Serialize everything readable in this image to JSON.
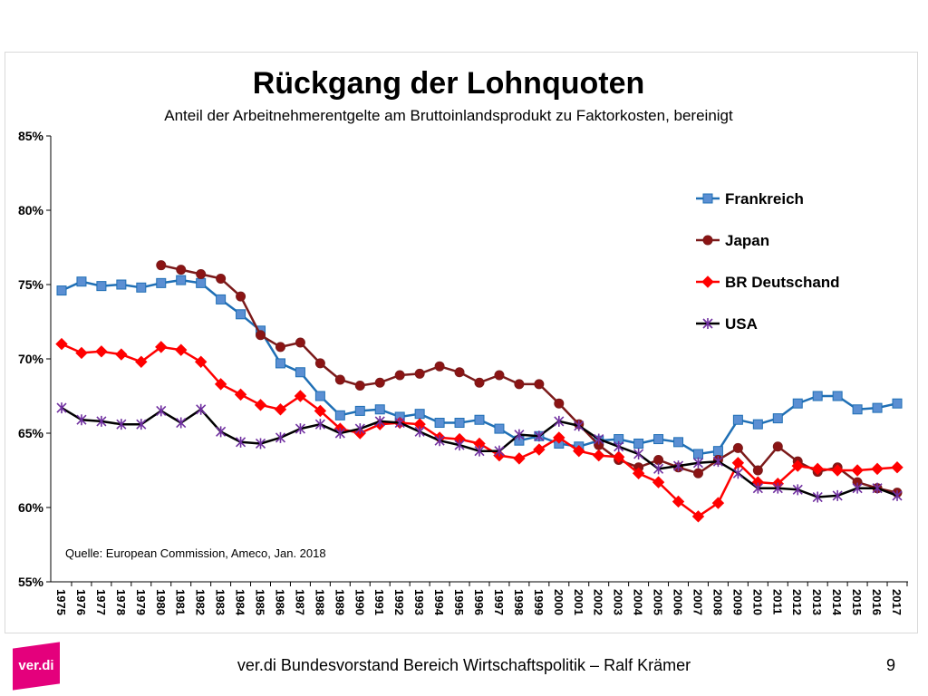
{
  "slide": {
    "footer": "ver.di Bundesvorstand Bereich Wirtschaftspolitik – Ralf Krämer",
    "page_number": "9",
    "logo_text": "ver.di"
  },
  "chart_data": {
    "type": "line",
    "title": "Rückgang der Lohnquoten",
    "subtitle": "Anteil der Arbeitnehmerentgelte am Bruttoinlandsprodukt zu Faktorkosten, bereinigt",
    "source": "Quelle: European Commission, Ameco, Jan. 2018",
    "xlabel": "",
    "ylabel": "",
    "ylim": [
      55,
      85
    ],
    "yticks": [
      55,
      60,
      65,
      70,
      75,
      80,
      85
    ],
    "ytick_labels": [
      "55%",
      "60%",
      "65%",
      "70%",
      "75%",
      "80%",
      "85%"
    ],
    "grid": false,
    "legend_position": "right",
    "x": [
      "1975",
      "1976",
      "1977",
      "1978",
      "1979",
      "1980",
      "1981",
      "1982",
      "1983",
      "1984",
      "1985",
      "1986",
      "1987",
      "1988",
      "1989",
      "1990",
      "1991",
      "1992",
      "1993",
      "1994",
      "1995",
      "1996",
      "1997",
      "1998",
      "1999",
      "2000",
      "2001",
      "2002",
      "2003",
      "2004",
      "2005",
      "2006",
      "2007",
      "2008",
      "2009",
      "2010",
      "2011",
      "2012",
      "2013",
      "2014",
      "2015",
      "2016",
      "2017"
    ],
    "series": [
      {
        "name": "Frankreich",
        "color": "#1f6fb5",
        "marker": "square",
        "marker_fill": "#5b8fd3",
        "values": [
          74.6,
          75.2,
          74.9,
          75.0,
          74.8,
          75.1,
          75.3,
          75.1,
          74.0,
          73.0,
          71.9,
          69.7,
          69.1,
          67.5,
          66.2,
          66.5,
          66.6,
          66.1,
          66.3,
          65.7,
          65.7,
          65.9,
          65.3,
          64.5,
          64.8,
          64.3,
          64.1,
          64.5,
          64.6,
          64.3,
          64.6,
          64.4,
          63.6,
          63.8,
          65.9,
          65.6,
          66.0,
          67.0,
          67.5,
          67.5,
          66.6,
          66.7,
          67.0
        ]
      },
      {
        "name": "Japan",
        "color": "#7b1a1a",
        "marker": "circle",
        "marker_fill": "#8b1414",
        "values": [
          null,
          null,
          null,
          null,
          null,
          76.3,
          76.0,
          75.7,
          75.4,
          74.2,
          71.6,
          70.8,
          71.1,
          69.7,
          68.6,
          68.2,
          68.4,
          68.9,
          69.0,
          69.5,
          69.1,
          68.4,
          68.9,
          68.3,
          68.3,
          67.0,
          65.6,
          64.2,
          63.2,
          62.7,
          63.2,
          62.7,
          62.3,
          63.2,
          64.0,
          62.5,
          64.1,
          63.1,
          62.4,
          62.7,
          61.7,
          61.3,
          61.0
        ]
      },
      {
        "name": "BR Deutschand",
        "color": "#ff0000",
        "marker": "diamond",
        "marker_fill": "#ff0000",
        "values": [
          71.0,
          70.4,
          70.5,
          70.3,
          69.8,
          70.8,
          70.6,
          69.8,
          68.3,
          67.6,
          66.9,
          66.6,
          67.5,
          66.5,
          65.3,
          65.0,
          65.6,
          65.7,
          65.6,
          64.7,
          64.6,
          64.3,
          63.5,
          63.3,
          63.9,
          64.7,
          63.8,
          63.5,
          63.4,
          62.3,
          61.7,
          60.4,
          59.4,
          60.3,
          63.0,
          61.7,
          61.6,
          62.8,
          62.6,
          62.5,
          62.5,
          62.6,
          62.7
        ]
      },
      {
        "name": "USA",
        "color": "#000000",
        "marker": "star",
        "marker_fill": "#7030a0",
        "values": [
          66.7,
          65.9,
          65.8,
          65.6,
          65.6,
          66.5,
          65.7,
          66.6,
          65.1,
          64.4,
          64.3,
          64.7,
          65.3,
          65.6,
          65.0,
          65.3,
          65.8,
          65.7,
          65.1,
          64.5,
          64.2,
          63.8,
          63.8,
          64.9,
          64.8,
          65.8,
          65.5,
          64.6,
          64.1,
          63.6,
          62.6,
          62.8,
          63.0,
          63.1,
          62.3,
          61.3,
          61.3,
          61.2,
          60.7,
          60.8,
          61.3,
          61.3,
          60.8
        ]
      }
    ]
  }
}
